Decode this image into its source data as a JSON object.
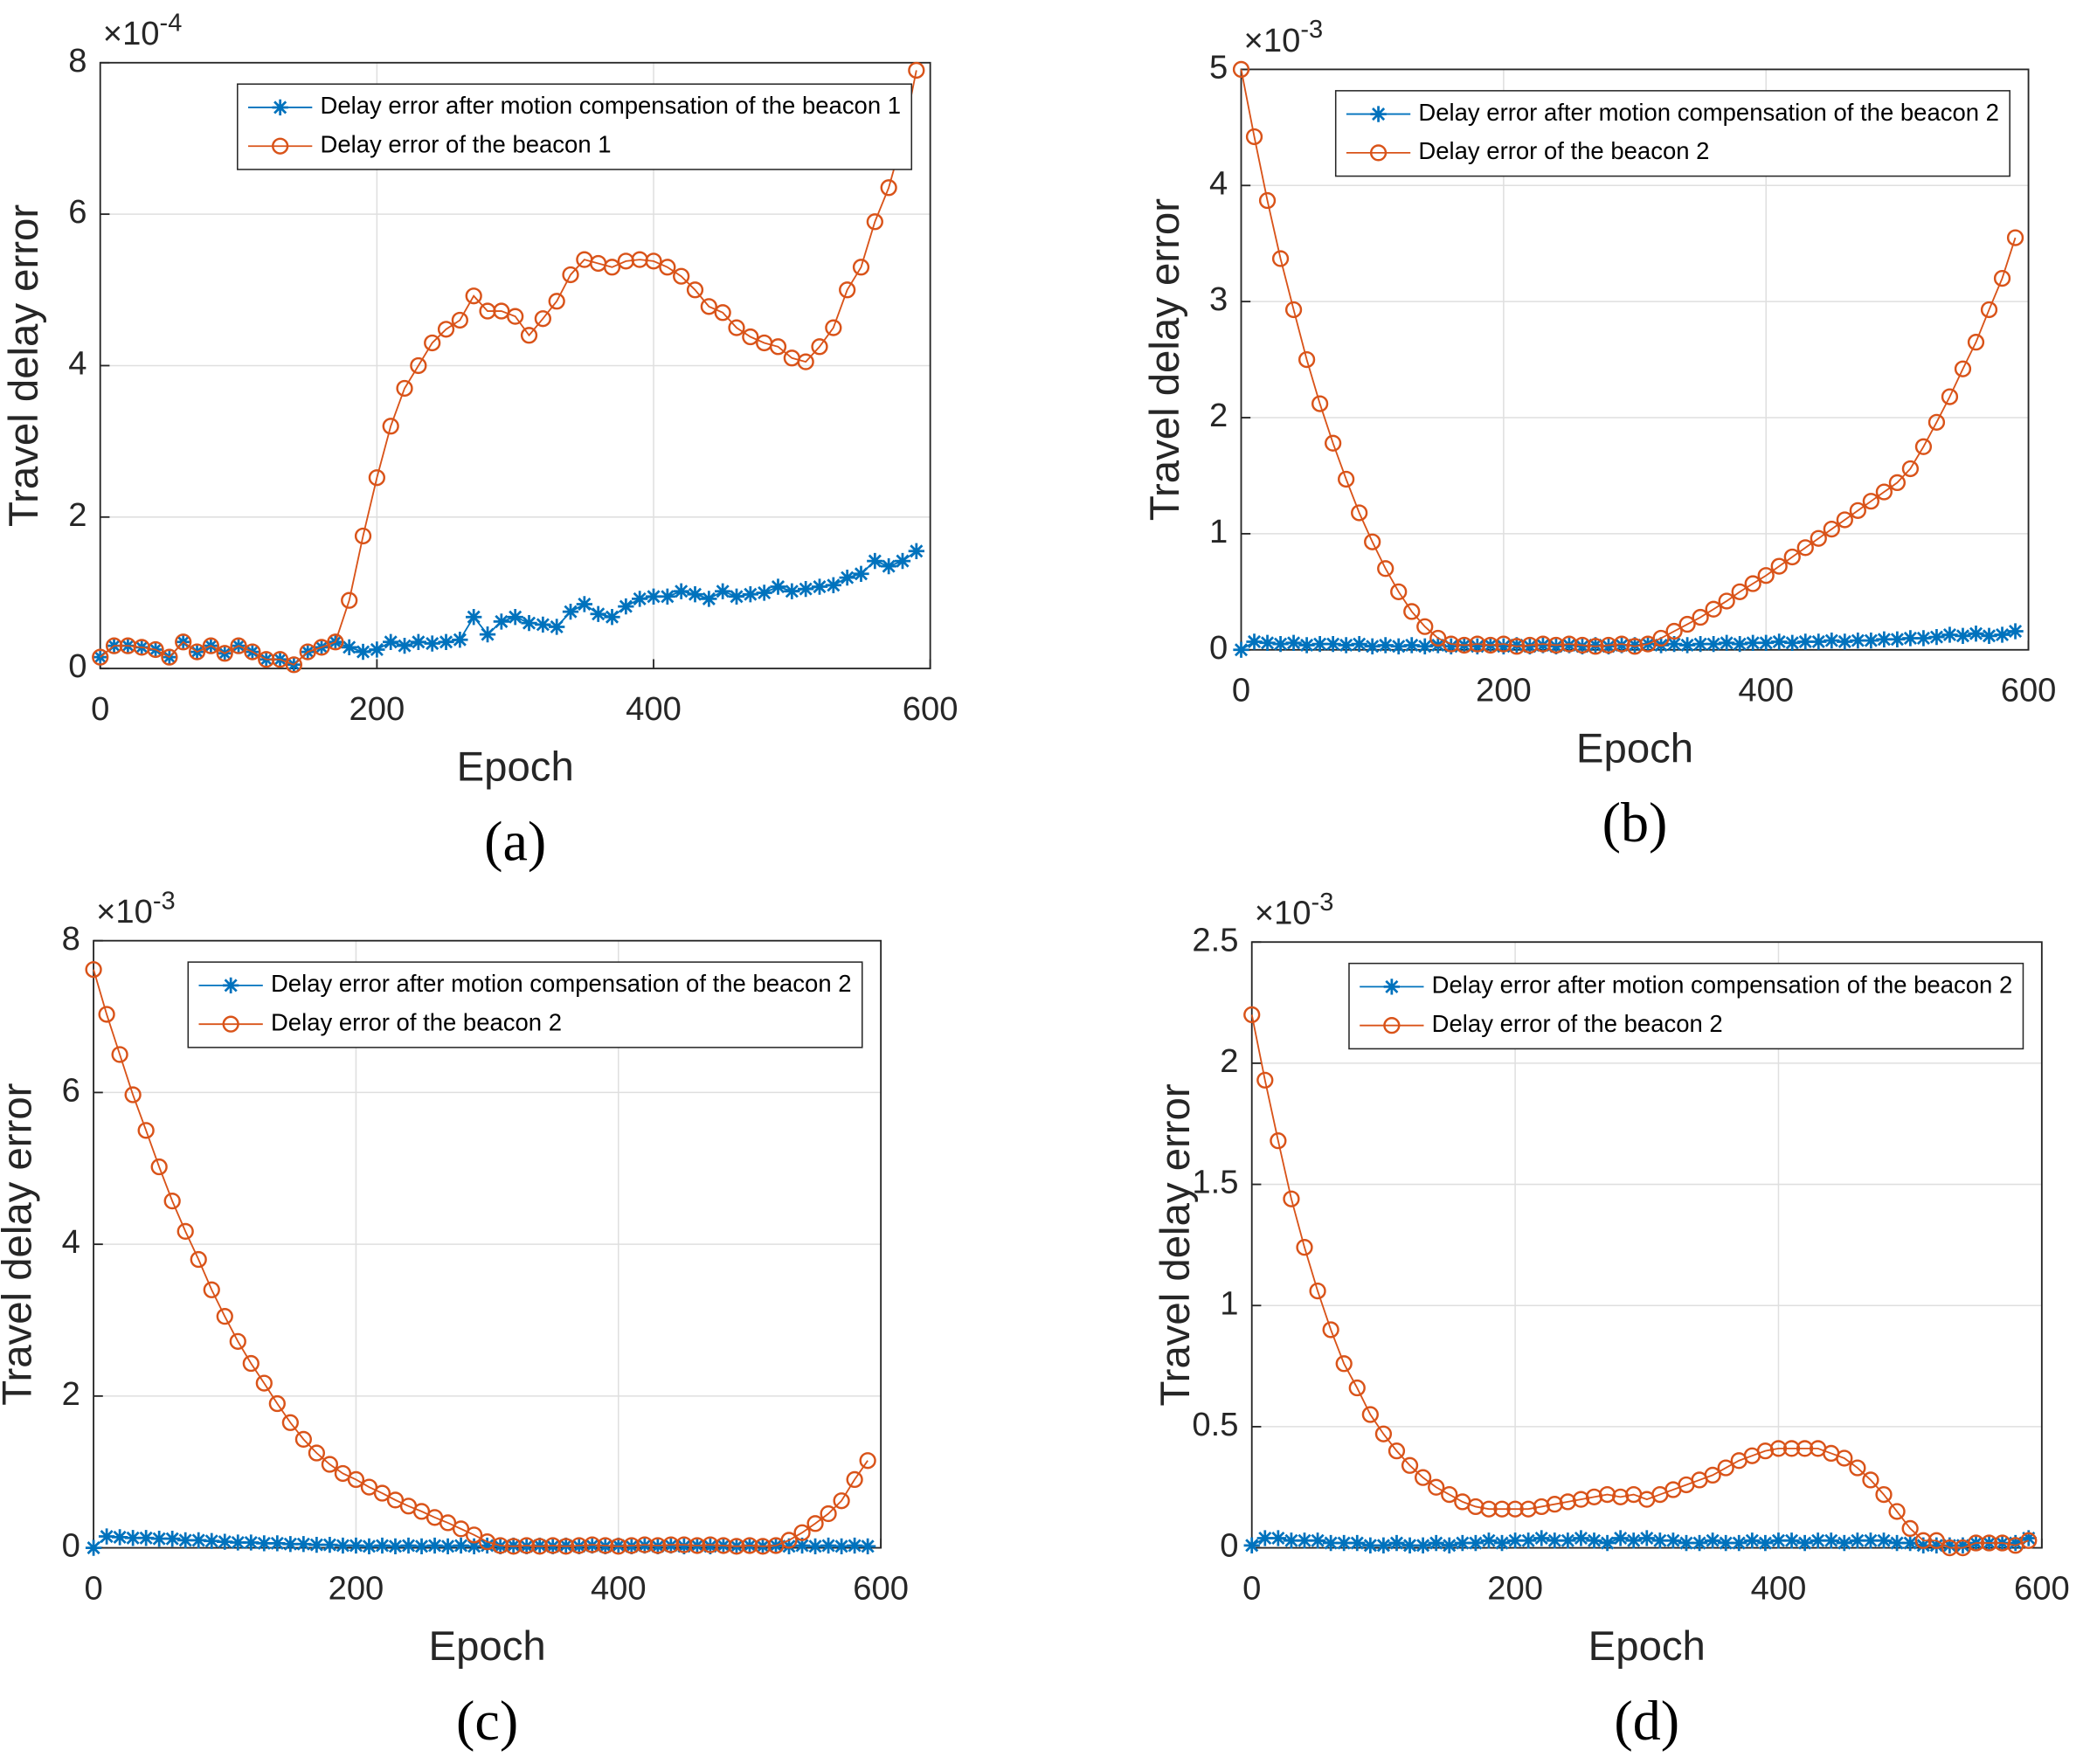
{
  "chart_data": [
    {
      "type": "line",
      "panel_label": "(a)",
      "ylabel": "Travel delay error",
      "xlabel": "Epoch",
      "y_multiplier": {
        "base": "×10",
        "exponent": "-4"
      },
      "xlim": [
        0,
        600
      ],
      "xticks": [
        0,
        200,
        400,
        600
      ],
      "ylim": [
        0,
        8
      ],
      "yticks": [
        0,
        2,
        4,
        6,
        8
      ],
      "grid": true,
      "legend": "top-right",
      "x": [
        0,
        10,
        20,
        30,
        40,
        50,
        60,
        70,
        80,
        90,
        100,
        110,
        120,
        130,
        140,
        150,
        160,
        170,
        180,
        190,
        200,
        210,
        220,
        230,
        240,
        250,
        260,
        270,
        280,
        290,
        300,
        310,
        320,
        330,
        340,
        350,
        360,
        370,
        380,
        390,
        400,
        410,
        420,
        430,
        440,
        450,
        460,
        470,
        480,
        490,
        500,
        510,
        520,
        530,
        540,
        550,
        560,
        570,
        580,
        590
      ],
      "series": [
        {
          "name": "Delay error after motion compensation of the beacon 1",
          "color": "#0072bd",
          "marker": "asterisk",
          "values": [
            0.15,
            0.3,
            0.3,
            0.28,
            0.25,
            0.15,
            0.35,
            0.22,
            0.3,
            0.2,
            0.3,
            0.22,
            0.12,
            0.12,
            0.05,
            0.22,
            0.28,
            0.35,
            0.28,
            0.22,
            0.25,
            0.35,
            0.3,
            0.35,
            0.33,
            0.35,
            0.38,
            0.68,
            0.45,
            0.62,
            0.68,
            0.6,
            0.58,
            0.55,
            0.75,
            0.85,
            0.72,
            0.68,
            0.82,
            0.92,
            0.95,
            0.95,
            1.02,
            0.98,
            0.92,
            1.02,
            0.95,
            0.98,
            1.0,
            1.08,
            1.02,
            1.05,
            1.08,
            1.1,
            1.2,
            1.25,
            1.42,
            1.35,
            1.42,
            1.55
          ]
        },
        {
          "name": "Delay error of the beacon 1",
          "color": "#d95319",
          "marker": "circle",
          "values": [
            0.15,
            0.3,
            0.3,
            0.28,
            0.25,
            0.15,
            0.35,
            0.22,
            0.3,
            0.2,
            0.3,
            0.22,
            0.12,
            0.12,
            0.05,
            0.22,
            0.28,
            0.35,
            0.9,
            1.75,
            2.52,
            3.2,
            3.7,
            4.0,
            4.3,
            4.48,
            4.6,
            4.92,
            4.72,
            4.72,
            4.65,
            4.4,
            4.62,
            4.85,
            5.2,
            5.4,
            5.35,
            5.3,
            5.38,
            5.4,
            5.38,
            5.3,
            5.18,
            5.0,
            4.78,
            4.7,
            4.5,
            4.38,
            4.3,
            4.25,
            4.1,
            4.05,
            4.25,
            4.5,
            5.0,
            5.3,
            5.9,
            6.35,
            7.0,
            7.9
          ]
        }
      ]
    },
    {
      "type": "line",
      "panel_label": "(b)",
      "ylabel": "Travel delay error",
      "xlabel": "Epoch",
      "y_multiplier": {
        "base": "×10",
        "exponent": "-3"
      },
      "xlim": [
        0,
        600
      ],
      "xticks": [
        0,
        200,
        400,
        600
      ],
      "ylim": [
        0,
        5
      ],
      "yticks": [
        0,
        1,
        2,
        3,
        4,
        5
      ],
      "grid": true,
      "legend": "top-right",
      "x": [
        0,
        10,
        20,
        30,
        40,
        50,
        60,
        70,
        80,
        90,
        100,
        110,
        120,
        130,
        140,
        150,
        160,
        170,
        180,
        190,
        200,
        210,
        220,
        230,
        240,
        250,
        260,
        270,
        280,
        290,
        300,
        310,
        320,
        330,
        340,
        350,
        360,
        370,
        380,
        390,
        400,
        410,
        420,
        430,
        440,
        450,
        460,
        470,
        480,
        490,
        500,
        510,
        520,
        530,
        540,
        550,
        560,
        570,
        580,
        590
      ],
      "series": [
        {
          "name": "Delay error after motion compensation of the beacon 2",
          "color": "#0072bd",
          "marker": "asterisk",
          "values": [
            0.0,
            0.07,
            0.06,
            0.05,
            0.06,
            0.04,
            0.05,
            0.05,
            0.04,
            0.05,
            0.03,
            0.04,
            0.03,
            0.04,
            0.03,
            0.04,
            0.03,
            0.04,
            0.03,
            0.04,
            0.03,
            0.04,
            0.03,
            0.04,
            0.03,
            0.04,
            0.03,
            0.04,
            0.03,
            0.04,
            0.04,
            0.05,
            0.04,
            0.05,
            0.04,
            0.05,
            0.05,
            0.06,
            0.05,
            0.06,
            0.06,
            0.07,
            0.06,
            0.07,
            0.07,
            0.08,
            0.07,
            0.08,
            0.08,
            0.09,
            0.09,
            0.1,
            0.1,
            0.11,
            0.13,
            0.12,
            0.14,
            0.12,
            0.13,
            0.16
          ]
        },
        {
          "name": "Delay error of the beacon 2",
          "color": "#d95319",
          "marker": "circle",
          "values": [
            5.0,
            4.42,
            3.87,
            3.37,
            2.93,
            2.5,
            2.12,
            1.78,
            1.47,
            1.18,
            0.93,
            0.7,
            0.5,
            0.33,
            0.2,
            0.1,
            0.05,
            0.04,
            0.05,
            0.04,
            0.05,
            0.03,
            0.04,
            0.05,
            0.04,
            0.05,
            0.04,
            0.03,
            0.04,
            0.05,
            0.03,
            0.05,
            0.1,
            0.16,
            0.22,
            0.28,
            0.35,
            0.42,
            0.5,
            0.57,
            0.64,
            0.72,
            0.8,
            0.88,
            0.96,
            1.04,
            1.12,
            1.2,
            1.28,
            1.36,
            1.44,
            1.56,
            1.75,
            1.96,
            2.18,
            2.42,
            2.65,
            2.93,
            3.2,
            3.55
          ]
        }
      ]
    },
    {
      "type": "line",
      "panel_label": "(c)",
      "ylabel": "Travel delay error",
      "xlabel": "Epoch",
      "y_multiplier": {
        "base": "×10",
        "exponent": "-3"
      },
      "xlim": [
        0,
        600
      ],
      "xticks": [
        0,
        200,
        400,
        600
      ],
      "ylim": [
        0,
        8
      ],
      "yticks": [
        0,
        2,
        4,
        6,
        8
      ],
      "grid": true,
      "legend": "top-right",
      "x": [
        0,
        10,
        20,
        30,
        40,
        50,
        60,
        70,
        80,
        90,
        100,
        110,
        120,
        130,
        140,
        150,
        160,
        170,
        180,
        190,
        200,
        210,
        220,
        230,
        240,
        250,
        260,
        270,
        280,
        290,
        300,
        310,
        320,
        330,
        340,
        350,
        360,
        370,
        380,
        390,
        400,
        410,
        420,
        430,
        440,
        450,
        460,
        470,
        480,
        490,
        500,
        510,
        520,
        530,
        540,
        550,
        560,
        570,
        580,
        590
      ],
      "series": [
        {
          "name": "Delay error after motion compensation of the beacon 2",
          "color": "#0072bd",
          "marker": "asterisk",
          "values": [
            0.0,
            0.15,
            0.14,
            0.13,
            0.13,
            0.12,
            0.12,
            0.1,
            0.1,
            0.09,
            0.08,
            0.07,
            0.07,
            0.06,
            0.06,
            0.05,
            0.05,
            0.04,
            0.04,
            0.03,
            0.03,
            0.02,
            0.03,
            0.02,
            0.03,
            0.02,
            0.03,
            0.02,
            0.03,
            0.02,
            0.03,
            0.02,
            0.03,
            0.02,
            0.03,
            0.02,
            0.03,
            0.02,
            0.03,
            0.02,
            0.03,
            0.02,
            0.03,
            0.02,
            0.03,
            0.02,
            0.03,
            0.02,
            0.03,
            0.02,
            0.03,
            0.02,
            0.03,
            0.02,
            0.03,
            0.02,
            0.03,
            0.02,
            0.03,
            0.02
          ]
        },
        {
          "name": "Delay error of the beacon 2",
          "color": "#d95319",
          "marker": "circle",
          "values": [
            7.62,
            7.03,
            6.5,
            5.97,
            5.5,
            5.02,
            4.57,
            4.17,
            3.8,
            3.4,
            3.05,
            2.72,
            2.43,
            2.17,
            1.9,
            1.65,
            1.43,
            1.25,
            1.1,
            0.98,
            0.9,
            0.8,
            0.72,
            0.63,
            0.55,
            0.48,
            0.4,
            0.33,
            0.25,
            0.17,
            0.08,
            0.03,
            0.02,
            0.03,
            0.02,
            0.03,
            0.02,
            0.03,
            0.04,
            0.03,
            0.02,
            0.03,
            0.04,
            0.03,
            0.04,
            0.04,
            0.03,
            0.04,
            0.03,
            0.02,
            0.03,
            0.02,
            0.03,
            0.1,
            0.2,
            0.32,
            0.45,
            0.62,
            0.9,
            1.15
          ]
        }
      ]
    },
    {
      "type": "line",
      "panel_label": "(d)",
      "ylabel": "Travel delay error",
      "xlabel": "Epoch",
      "y_multiplier": {
        "base": "×10",
        "exponent": "-3"
      },
      "xlim": [
        0,
        600
      ],
      "xticks": [
        0,
        200,
        400,
        600
      ],
      "ylim": [
        0,
        2.5
      ],
      "yticks": [
        0,
        0.5,
        1,
        1.5,
        2,
        2.5
      ],
      "grid": true,
      "legend": "top-right",
      "x": [
        0,
        10,
        20,
        30,
        40,
        50,
        60,
        70,
        80,
        90,
        100,
        110,
        120,
        130,
        140,
        150,
        160,
        170,
        180,
        190,
        200,
        210,
        220,
        230,
        240,
        250,
        260,
        270,
        280,
        290,
        300,
        310,
        320,
        330,
        340,
        350,
        360,
        370,
        380,
        390,
        400,
        410,
        420,
        430,
        440,
        450,
        460,
        470,
        480,
        490,
        500,
        510,
        520,
        530,
        540,
        550,
        560,
        570,
        580,
        590
      ],
      "series": [
        {
          "name": "Delay error after motion compensation of the beacon 2",
          "color": "#0072bd",
          "marker": "asterisk",
          "values": [
            0.01,
            0.04,
            0.04,
            0.03,
            0.03,
            0.03,
            0.02,
            0.02,
            0.02,
            0.01,
            0.01,
            0.02,
            0.01,
            0.01,
            0.02,
            0.01,
            0.02,
            0.02,
            0.03,
            0.02,
            0.03,
            0.03,
            0.04,
            0.03,
            0.03,
            0.04,
            0.03,
            0.02,
            0.04,
            0.03,
            0.04,
            0.03,
            0.03,
            0.02,
            0.02,
            0.03,
            0.02,
            0.02,
            0.03,
            0.02,
            0.03,
            0.03,
            0.02,
            0.03,
            0.03,
            0.02,
            0.03,
            0.03,
            0.03,
            0.02,
            0.02,
            0.01,
            0.01,
            0.01,
            0.01,
            0.02,
            0.02,
            0.02,
            0.02,
            0.04
          ]
        },
        {
          "name": "Delay error of the beacon 2",
          "color": "#d95319",
          "marker": "circle",
          "values": [
            2.2,
            1.93,
            1.68,
            1.44,
            1.24,
            1.06,
            0.9,
            0.76,
            0.66,
            0.55,
            0.47,
            0.4,
            0.34,
            0.29,
            0.25,
            0.22,
            0.19,
            0.17,
            0.16,
            0.16,
            0.16,
            0.16,
            0.17,
            0.18,
            0.19,
            0.2,
            0.21,
            0.22,
            0.21,
            0.22,
            0.2,
            0.22,
            0.24,
            0.26,
            0.28,
            0.3,
            0.33,
            0.36,
            0.38,
            0.4,
            0.41,
            0.41,
            0.41,
            0.41,
            0.39,
            0.37,
            0.33,
            0.28,
            0.22,
            0.15,
            0.08,
            0.03,
            0.03,
            0.0,
            0.0,
            0.02,
            0.02,
            0.02,
            0.01,
            0.03
          ]
        }
      ]
    }
  ]
}
